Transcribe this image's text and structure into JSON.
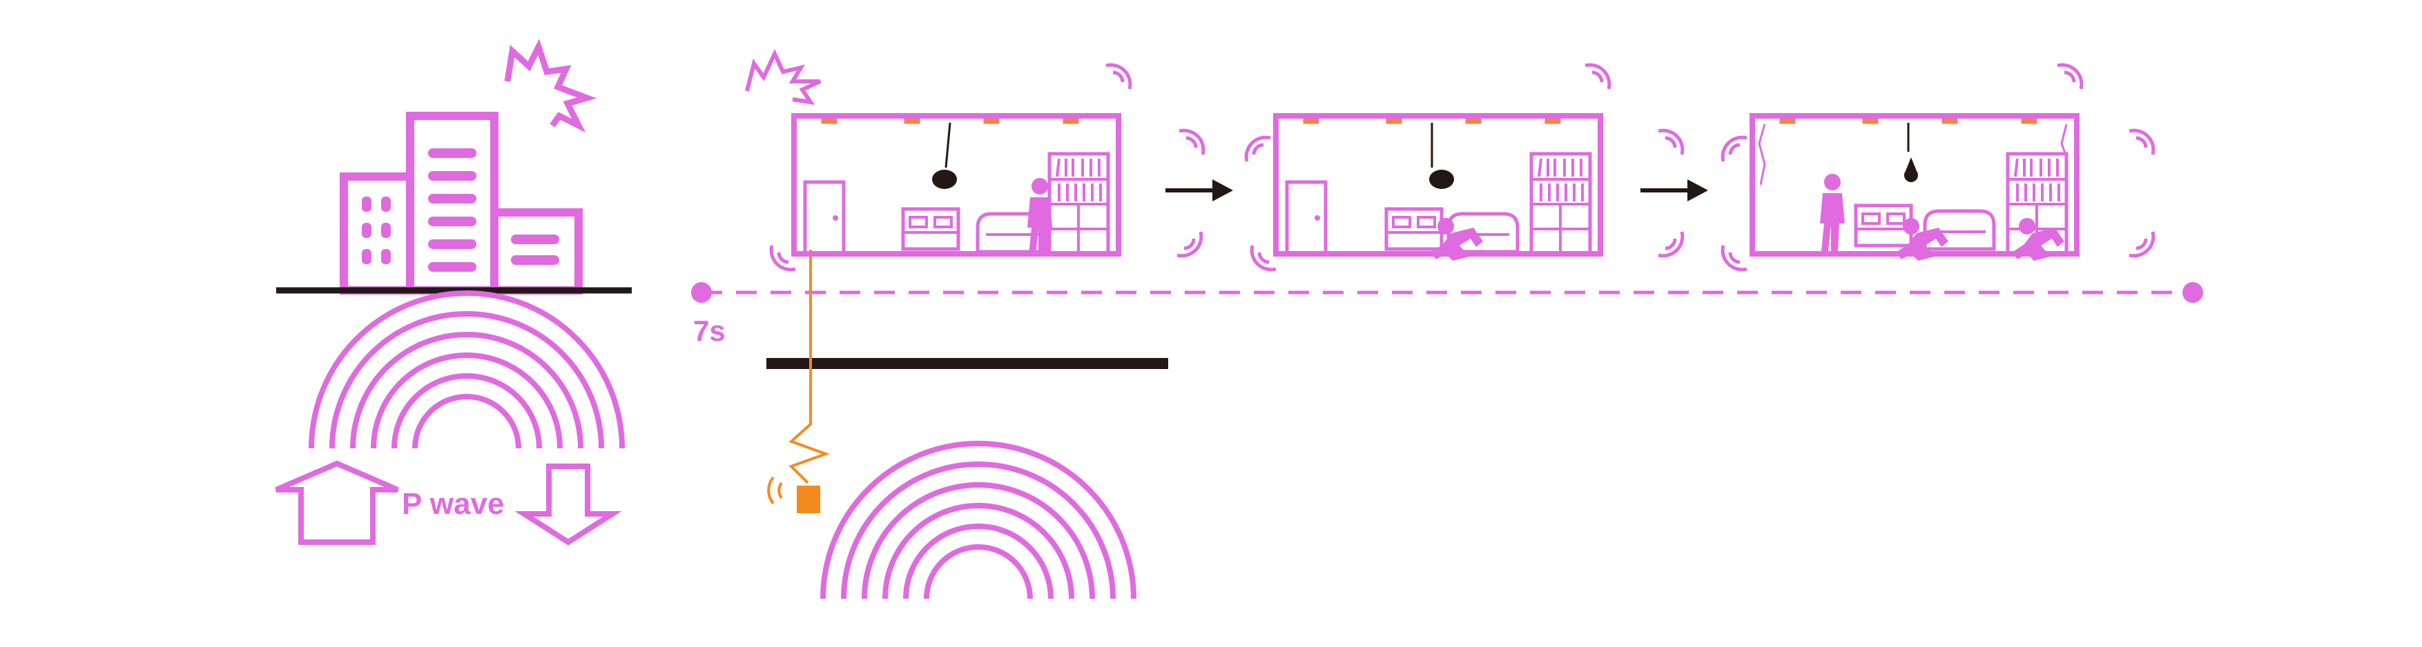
{
  "colors": {
    "primary": "#e06ae0",
    "accent": "#f58a1f",
    "dark": "#231815",
    "background": "#ffffff"
  },
  "labels": {
    "wave": "P wave",
    "time": "7s"
  },
  "icons": {
    "building": "buildings-icon",
    "burst": "shock-burst-icon",
    "arrow_up": "arrow-up-icon",
    "arrow_down": "arrow-down-icon",
    "sensor": "seismic-sensor-icon",
    "next": "arrow-right-icon",
    "vibration": "vibration-marks-icon"
  },
  "stages": [
    {
      "name": "room-stage-1",
      "state": "warning"
    },
    {
      "name": "room-stage-2",
      "state": "people-take-cover"
    },
    {
      "name": "room-stage-3",
      "state": "shaking"
    }
  ]
}
